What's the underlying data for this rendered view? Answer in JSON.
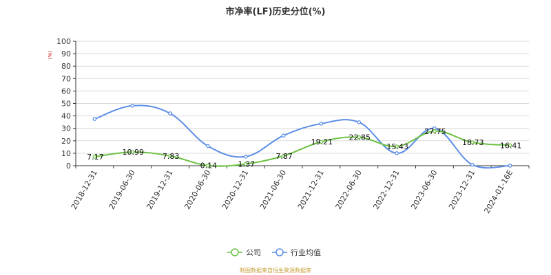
{
  "chart_data": {
    "type": "line",
    "title": "市净率(LF)历史分位(%)",
    "y_unit": "(%)",
    "ylim": [
      0,
      100
    ],
    "y_ticks": [
      0,
      10,
      20,
      30,
      40,
      50,
      60,
      70,
      80,
      90,
      100
    ],
    "grid": true,
    "legend_position": "bottom-center",
    "categories": [
      "2018-12-31",
      "2019-06-30",
      "2019-12-31",
      "2020-06-30",
      "2020-12-31",
      "2021-06-30",
      "2021-12-31",
      "2022-06-30",
      "2022-12-31",
      "2023-06-30",
      "2023-12-31",
      "2024-01-16E"
    ],
    "series": [
      {
        "name": "公司",
        "color": "#6cc142",
        "values": [
          7.17,
          10.99,
          7.83,
          0.14,
          1.37,
          7.87,
          19.21,
          22.85,
          15.43,
          27.75,
          18.73,
          16.41
        ],
        "labels": [
          "7.17",
          "10.99",
          "7.83",
          "0.14",
          "1.37",
          "7.87",
          "19.21",
          "22.85",
          "15.43",
          "27.75",
          "18.73",
          "16.41"
        ]
      },
      {
        "name": "行业均值",
        "color": "#5b8ee6",
        "values": [
          37.5,
          48.2,
          42.0,
          15.8,
          7.3,
          24.2,
          33.8,
          34.9,
          10.0,
          30.0,
          0.8,
          0.0
        ]
      }
    ],
    "source": "制图数据来自恒生聚源数据库"
  }
}
